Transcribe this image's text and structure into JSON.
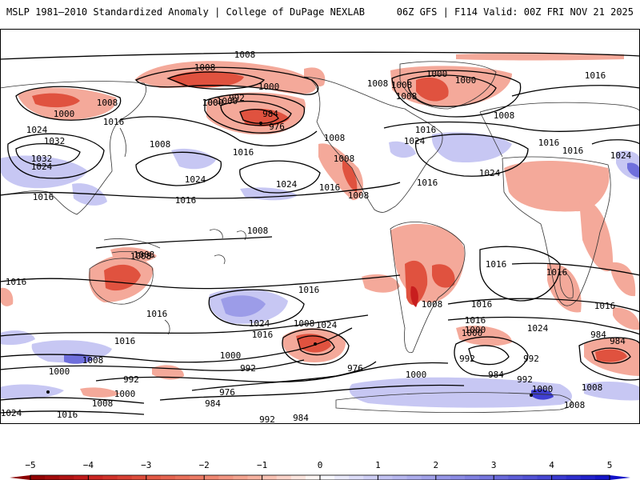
{
  "header": {
    "title": "MSLP 1981–2010 Standardized Anomaly | College of DuPage NEXLAB",
    "run_info": "06Z GFS | F114 Valid: 00Z FRI NOV 21 2025"
  },
  "colorbar": {
    "ticks": [
      "−5",
      "−4",
      "−3",
      "−2",
      "−1",
      "0",
      "1",
      "2",
      "3",
      "4",
      "5"
    ],
    "values": [
      -5,
      -4,
      -3,
      -2,
      -1,
      0,
      1,
      2,
      3,
      4,
      5
    ],
    "colors": [
      "#8b0000",
      "#c81e1e",
      "#e0523f",
      "#ee8069",
      "#f8b9a8",
      "#ffffff",
      "#c7c7f3",
      "#9c9ce8",
      "#6f6fdc",
      "#4040d2",
      "#1010c8"
    ]
  },
  "map": {
    "background": "#ffffff",
    "coast_color": "#333333",
    "contour_color": "#000000",
    "isobar_labels": [
      "1008",
      "1008",
      "1000",
      "1008",
      "1000",
      "1008",
      "1000",
      "1008",
      "1000",
      "1016",
      "1000",
      "1008",
      "992",
      "984",
      "976",
      "1016",
      "1032",
      "1024",
      "1032",
      "1024",
      "1016",
      "1008",
      "1016",
      "1024",
      "1024",
      "1024",
      "1016",
      "1016",
      "1024",
      "1016",
      "1024",
      "1016",
      "1008",
      "1016",
      "1016",
      "1008",
      "1016",
      "1016",
      "1008",
      "1008",
      "1016",
      "1016",
      "1024",
      "1016",
      "1016",
      "1008",
      "1000",
      "992",
      "976",
      "1024",
      "1016",
      "1000",
      "1008",
      "1008",
      "1016",
      "1016",
      "1024",
      "1000",
      "992",
      "984",
      "984",
      "992",
      "1000",
      "1008",
      "1008",
      "1000",
      "1008",
      "992",
      "984",
      "976",
      "984",
      "992",
      "1024",
      "1016",
      "1000",
      "984",
      "992",
      "1000",
      "1000",
      "1008",
      "1008",
      "1008",
      "1000",
      "1016"
    ]
  }
}
